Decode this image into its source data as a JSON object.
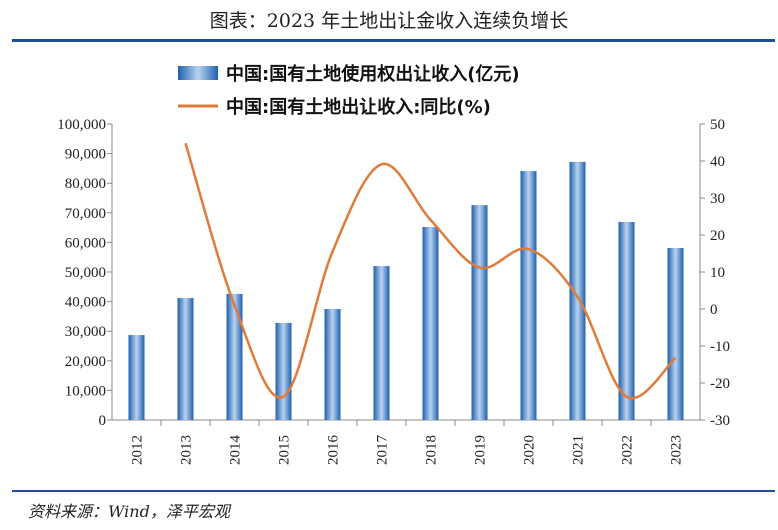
{
  "title": "图表：2023 年土地出让金收入连续负增长",
  "source": "资料来源：Wind，泽平宏观",
  "chart_data": {
    "type": "bar+line",
    "categories": [
      "2012",
      "2013",
      "2014",
      "2015",
      "2016",
      "2017",
      "2018",
      "2019",
      "2020",
      "2021",
      "2022",
      "2023"
    ],
    "series": [
      {
        "name": "中国:国有土地使用权出让收入(亿元)",
        "type": "bar",
        "axis": "left",
        "color": "#2f6db5",
        "values": [
          28700,
          41200,
          42600,
          32800,
          37500,
          52000,
          65200,
          72600,
          84100,
          87200,
          66900,
          58100
        ]
      },
      {
        "name": "中国:国有土地出让收入:同比(%)",
        "type": "line",
        "axis": "right",
        "color": "#e07b39",
        "values": [
          null,
          44.8,
          1.0,
          -23.7,
          15.5,
          39.1,
          24.1,
          11.2,
          16.2,
          3.3,
          -23.7,
          -13.2
        ]
      }
    ],
    "left_axis": {
      "ylim": [
        0,
        100000
      ],
      "ticks": [
        "0",
        "10,000",
        "20,000",
        "30,000",
        "40,000",
        "50,000",
        "60,000",
        "70,000",
        "80,000",
        "90,000",
        "100,000"
      ]
    },
    "right_axis": {
      "ylim": [
        -30,
        50
      ],
      "ticks": [
        "-30",
        "-20",
        "-10",
        "0",
        "10",
        "20",
        "30",
        "40",
        "50"
      ]
    },
    "legend_placement": "top-center",
    "grid": false
  }
}
